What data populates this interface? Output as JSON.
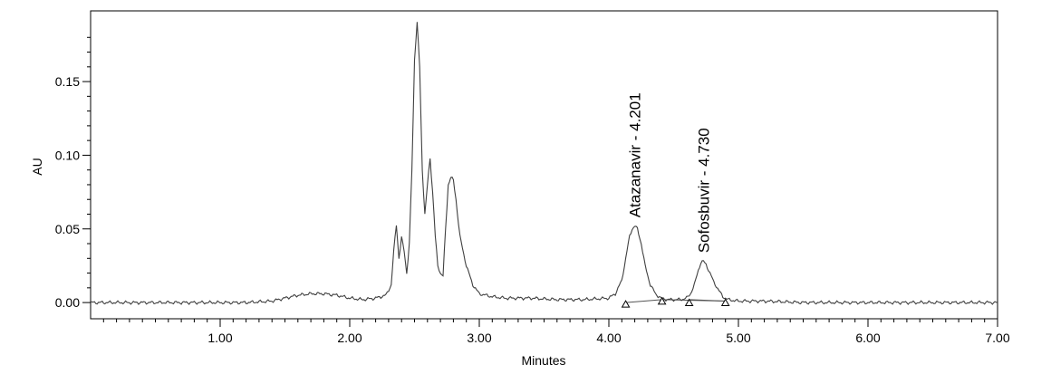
{
  "chart_data": {
    "type": "line",
    "title": "",
    "xlabel": "Minutes",
    "ylabel": "AU",
    "xlim": [
      0.0,
      7.0
    ],
    "ylim": [
      -0.011,
      0.198
    ],
    "x_ticks": [
      1.0,
      2.0,
      3.0,
      4.0,
      5.0,
      6.0,
      7.0
    ],
    "x_tick_labels": [
      "1.00",
      "2.00",
      "3.00",
      "4.00",
      "5.00",
      "6.00",
      "7.00"
    ],
    "y_ticks": [
      0.0,
      0.05,
      0.1,
      0.15
    ],
    "y_tick_labels": [
      "0.00",
      "0.05",
      "0.10",
      "0.15"
    ],
    "grid": false,
    "legend": "none",
    "line_color": "#404040",
    "series": [
      {
        "x": [
          0.0,
          0.2,
          0.4,
          0.6,
          0.8,
          1.0,
          1.2,
          1.4,
          1.5,
          1.6,
          1.7,
          1.8,
          1.9,
          2.0,
          2.1,
          2.2,
          2.28,
          2.32,
          2.34,
          2.36,
          2.38,
          2.4,
          2.42,
          2.44,
          2.46,
          2.48,
          2.5,
          2.52,
          2.54,
          2.56,
          2.58,
          2.6,
          2.62,
          2.64,
          2.66,
          2.68,
          2.7,
          2.72,
          2.74,
          2.76,
          2.78,
          2.8,
          2.82,
          2.85,
          2.9,
          2.95,
          3.0,
          3.1,
          3.2,
          3.4,
          3.6,
          3.8,
          4.0,
          4.05,
          4.1,
          4.13,
          4.16,
          4.18,
          4.2,
          4.22,
          4.25,
          4.28,
          4.32,
          4.36,
          4.4,
          4.45,
          4.5,
          4.55,
          4.6,
          4.63,
          4.66,
          4.69,
          4.71,
          4.73,
          4.75,
          4.78,
          4.81,
          4.85,
          4.88,
          4.92,
          5.0,
          5.2,
          5.5,
          6.0,
          6.5,
          7.0
        ],
        "y": [
          0.0,
          0.0,
          0.0,
          0.0,
          0.0,
          0.0,
          0.0,
          0.001,
          0.003,
          0.005,
          0.006,
          0.006,
          0.005,
          0.003,
          0.002,
          0.003,
          0.005,
          0.012,
          0.035,
          0.053,
          0.03,
          0.044,
          0.035,
          0.02,
          0.04,
          0.09,
          0.165,
          0.19,
          0.16,
          0.09,
          0.06,
          0.08,
          0.098,
          0.075,
          0.045,
          0.025,
          0.02,
          0.018,
          0.05,
          0.08,
          0.085,
          0.083,
          0.07,
          0.045,
          0.025,
          0.012,
          0.006,
          0.004,
          0.003,
          0.003,
          0.002,
          0.002,
          0.003,
          0.006,
          0.015,
          0.03,
          0.045,
          0.05,
          0.052,
          0.05,
          0.04,
          0.025,
          0.012,
          0.006,
          0.003,
          0.002,
          0.002,
          0.002,
          0.003,
          0.006,
          0.012,
          0.022,
          0.027,
          0.028,
          0.026,
          0.02,
          0.014,
          0.008,
          0.004,
          0.002,
          0.001,
          0.001,
          0.0,
          0.0,
          0.0,
          0.0
        ]
      }
    ],
    "baselines": [
      {
        "x": [
          4.13,
          4.41
        ],
        "y": [
          0.0,
          0.002
        ]
      },
      {
        "x": [
          4.62,
          4.9
        ],
        "y": [
          0.002,
          0.001
        ]
      },
      {
        "x": [
          4.41,
          4.9
        ],
        "y": [
          0.002,
          0.001
        ]
      }
    ],
    "integration_markers": [
      {
        "x": 4.13,
        "y": 0.0
      },
      {
        "x": 4.41,
        "y": 0.002
      },
      {
        "x": 4.62,
        "y": 0.001
      },
      {
        "x": 4.9,
        "y": 0.001
      }
    ],
    "annotations": [
      {
        "text": "Atazanavir - 4.201",
        "x": 4.201,
        "y": 0.054
      },
      {
        "text": "Sofosbuvir - 4.730",
        "x": 4.73,
        "y": 0.03
      }
    ]
  }
}
